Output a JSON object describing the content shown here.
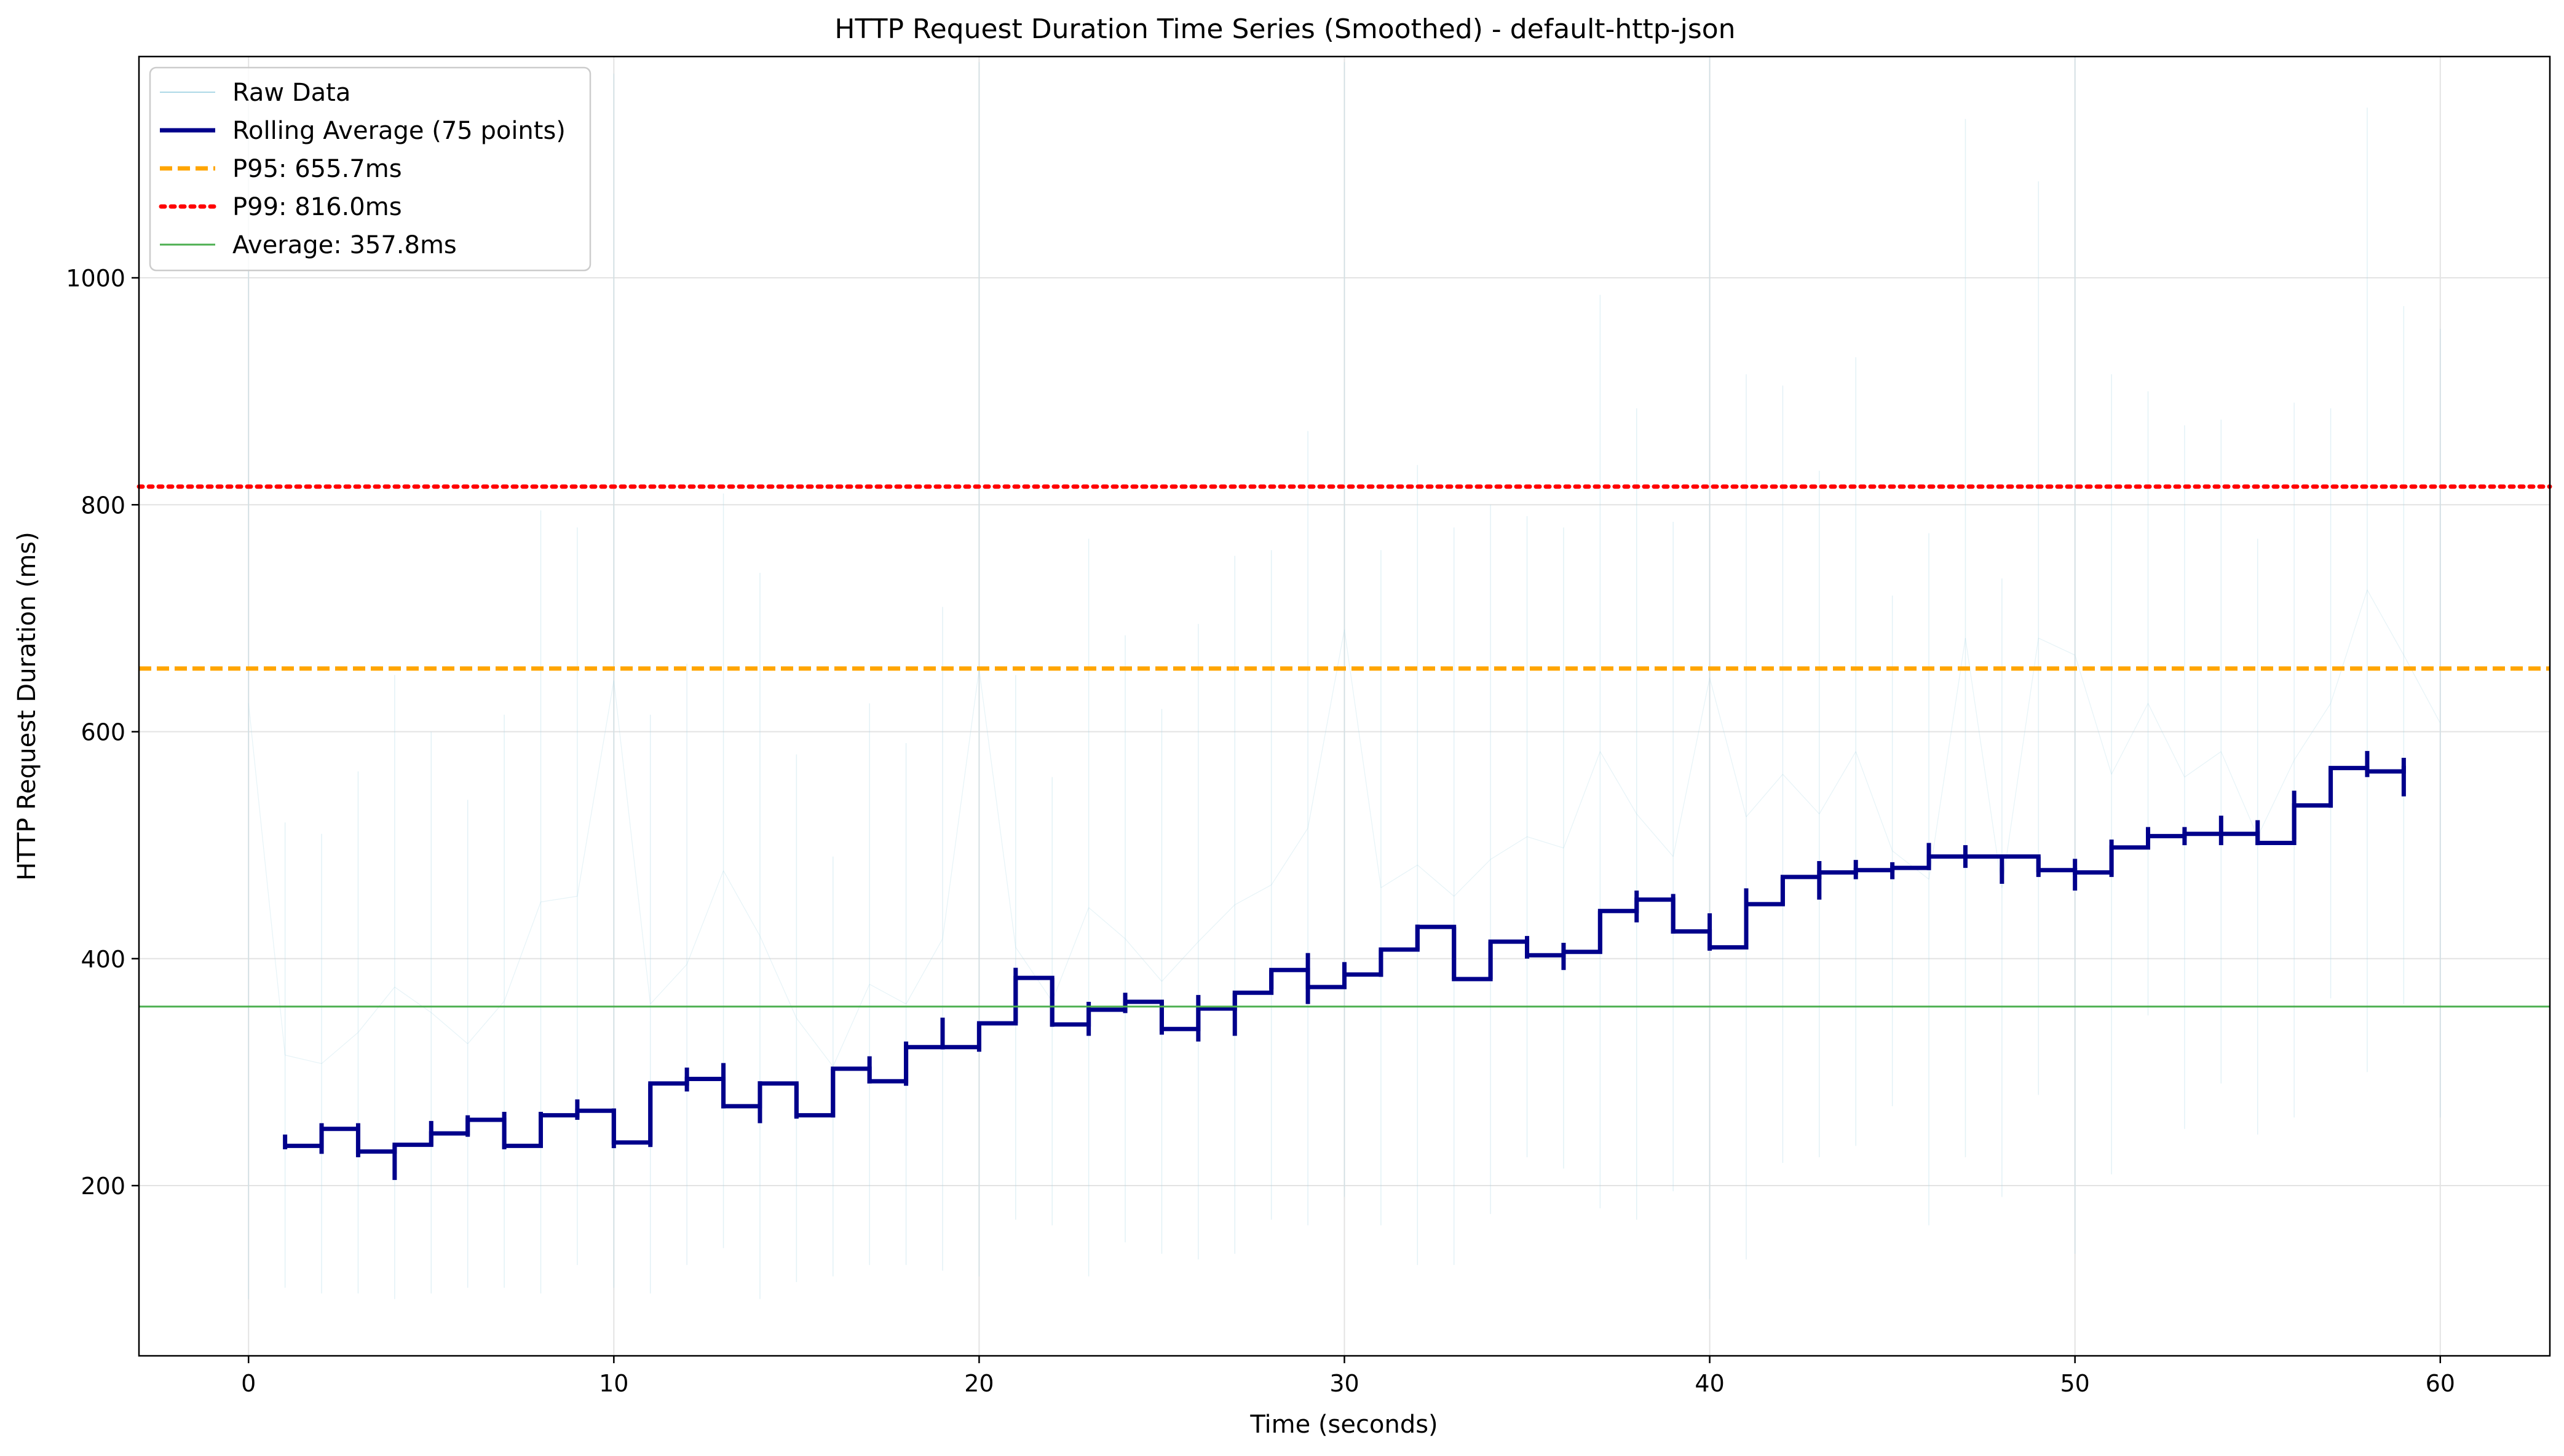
{
  "chart_data": {
    "type": "line",
    "title": "HTTP Request Duration Time Series (Smoothed) - default-http-json",
    "xlabel": "Time (seconds)",
    "ylabel": "HTTP Request Duration (ms)",
    "xlim": [
      -3,
      63
    ],
    "ylim": [
      50,
      1195
    ],
    "xticks": [
      0,
      10,
      20,
      30,
      40,
      50,
      60
    ],
    "yticks": [
      200,
      400,
      600,
      800,
      1000
    ],
    "grid": true,
    "legend_position": "upper-left",
    "series": [
      {
        "name": "Raw Data",
        "color": "#add8e6",
        "style": "thin-line",
        "per_second_range": [
          [
            0,
            100,
            1150
          ],
          [
            1,
            110,
            520
          ],
          [
            2,
            105,
            510
          ],
          [
            3,
            105,
            565
          ],
          [
            4,
            100,
            650
          ],
          [
            5,
            105,
            600
          ],
          [
            6,
            110,
            540
          ],
          [
            7,
            110,
            615
          ],
          [
            8,
            105,
            795
          ],
          [
            9,
            130,
            780
          ],
          [
            10,
            110,
            1180
          ],
          [
            11,
            105,
            615
          ],
          [
            12,
            130,
            660
          ],
          [
            13,
            145,
            810
          ],
          [
            14,
            100,
            740
          ],
          [
            15,
            115,
            580
          ],
          [
            16,
            120,
            490
          ],
          [
            17,
            130,
            625
          ],
          [
            18,
            130,
            590
          ],
          [
            19,
            125,
            710
          ],
          [
            20,
            120,
            1190
          ],
          [
            21,
            170,
            650
          ],
          [
            22,
            165,
            560
          ],
          [
            23,
            120,
            770
          ],
          [
            24,
            150,
            685
          ],
          [
            25,
            140,
            620
          ],
          [
            26,
            135,
            695
          ],
          [
            27,
            140,
            755
          ],
          [
            28,
            170,
            760
          ],
          [
            29,
            165,
            865
          ],
          [
            30,
            190,
            1190
          ],
          [
            31,
            165,
            760
          ],
          [
            32,
            130,
            835
          ],
          [
            33,
            130,
            780
          ],
          [
            34,
            175,
            800
          ],
          [
            35,
            225,
            790
          ],
          [
            36,
            215,
            780
          ],
          [
            37,
            180,
            985
          ],
          [
            38,
            170,
            885
          ],
          [
            39,
            195,
            785
          ],
          [
            40,
            100,
            1195
          ],
          [
            41,
            135,
            915
          ],
          [
            42,
            220,
            905
          ],
          [
            43,
            225,
            830
          ],
          [
            44,
            235,
            930
          ],
          [
            45,
            270,
            720
          ],
          [
            46,
            165,
            775
          ],
          [
            47,
            225,
            1140
          ],
          [
            48,
            190,
            735
          ],
          [
            49,
            280,
            1085
          ],
          [
            50,
            140,
            1195
          ],
          [
            51,
            210,
            915
          ],
          [
            52,
            350,
            900
          ],
          [
            53,
            250,
            870
          ],
          [
            54,
            290,
            875
          ],
          [
            55,
            245,
            770
          ],
          [
            56,
            260,
            890
          ],
          [
            57,
            365,
            885
          ],
          [
            58,
            300,
            1150
          ],
          [
            59,
            360,
            975
          ],
          [
            60,
            260,
            955
          ]
        ]
      },
      {
        "name": "Rolling Average (75 points)",
        "color": "#00008b",
        "style": "thick-line",
        "per_second": [
          [
            1,
            235,
            232,
            245
          ],
          [
            2,
            250,
            228,
            255
          ],
          [
            3,
            230,
            225,
            255
          ],
          [
            4,
            236,
            205,
            236
          ],
          [
            5,
            246,
            235,
            257
          ],
          [
            6,
            258,
            243,
            262
          ],
          [
            7,
            235,
            232,
            265
          ],
          [
            8,
            262,
            240,
            265
          ],
          [
            9,
            266,
            258,
            276
          ],
          [
            10,
            238,
            233,
            268
          ],
          [
            11,
            290,
            234,
            290
          ],
          [
            12,
            294,
            283,
            304
          ],
          [
            13,
            270,
            268,
            308
          ],
          [
            14,
            290,
            255,
            292
          ],
          [
            15,
            262,
            259,
            290
          ],
          [
            16,
            303,
            260,
            303
          ],
          [
            17,
            292,
            290,
            314
          ],
          [
            18,
            322,
            288,
            327
          ],
          [
            19,
            322,
            320,
            348
          ],
          [
            20,
            343,
            318,
            343
          ],
          [
            21,
            383,
            343,
            392
          ],
          [
            22,
            342,
            340,
            383
          ],
          [
            23,
            355,
            332,
            362
          ],
          [
            24,
            362,
            352,
            370
          ],
          [
            25,
            338,
            333,
            362
          ],
          [
            26,
            356,
            327,
            368
          ],
          [
            27,
            370,
            332,
            370
          ],
          [
            28,
            390,
            373,
            390
          ],
          [
            29,
            375,
            360,
            405
          ],
          [
            30,
            386,
            375,
            397
          ],
          [
            31,
            408,
            384,
            408
          ],
          [
            32,
            428,
            408,
            430
          ],
          [
            33,
            382,
            382,
            428
          ],
          [
            34,
            415,
            382,
            415
          ],
          [
            35,
            403,
            400,
            420
          ],
          [
            36,
            406,
            390,
            414
          ],
          [
            37,
            442,
            407,
            442
          ],
          [
            38,
            452,
            432,
            460
          ],
          [
            39,
            424,
            422,
            457
          ],
          [
            40,
            410,
            407,
            440
          ],
          [
            41,
            448,
            410,
            462
          ],
          [
            42,
            472,
            447,
            472
          ],
          [
            43,
            476,
            452,
            486
          ],
          [
            44,
            478,
            470,
            487
          ],
          [
            45,
            480,
            470,
            485
          ],
          [
            46,
            490,
            478,
            502
          ],
          [
            47,
            490,
            480,
            500
          ],
          [
            48,
            490,
            466,
            490
          ],
          [
            49,
            478,
            472,
            490
          ],
          [
            50,
            476,
            460,
            488
          ],
          [
            51,
            498,
            472,
            505
          ],
          [
            52,
            508,
            498,
            516
          ],
          [
            53,
            510,
            500,
            516
          ],
          [
            54,
            510,
            500,
            526
          ],
          [
            55,
            502,
            500,
            522
          ],
          [
            56,
            535,
            505,
            548
          ],
          [
            57,
            568,
            533,
            568
          ],
          [
            58,
            565,
            560,
            583
          ],
          [
            59,
            570,
            543,
            577
          ]
        ]
      },
      {
        "name": "P95: 655.7ms",
        "color": "#ffa500",
        "style": "dashed-hline",
        "value": 655.7
      },
      {
        "name": "P99: 816.0ms",
        "color": "#ff0000",
        "style": "dotted-hline",
        "value": 816.0
      },
      {
        "name": "Average: 357.8ms",
        "color": "#4caf50",
        "style": "solid-hline",
        "value": 357.8
      }
    ]
  }
}
